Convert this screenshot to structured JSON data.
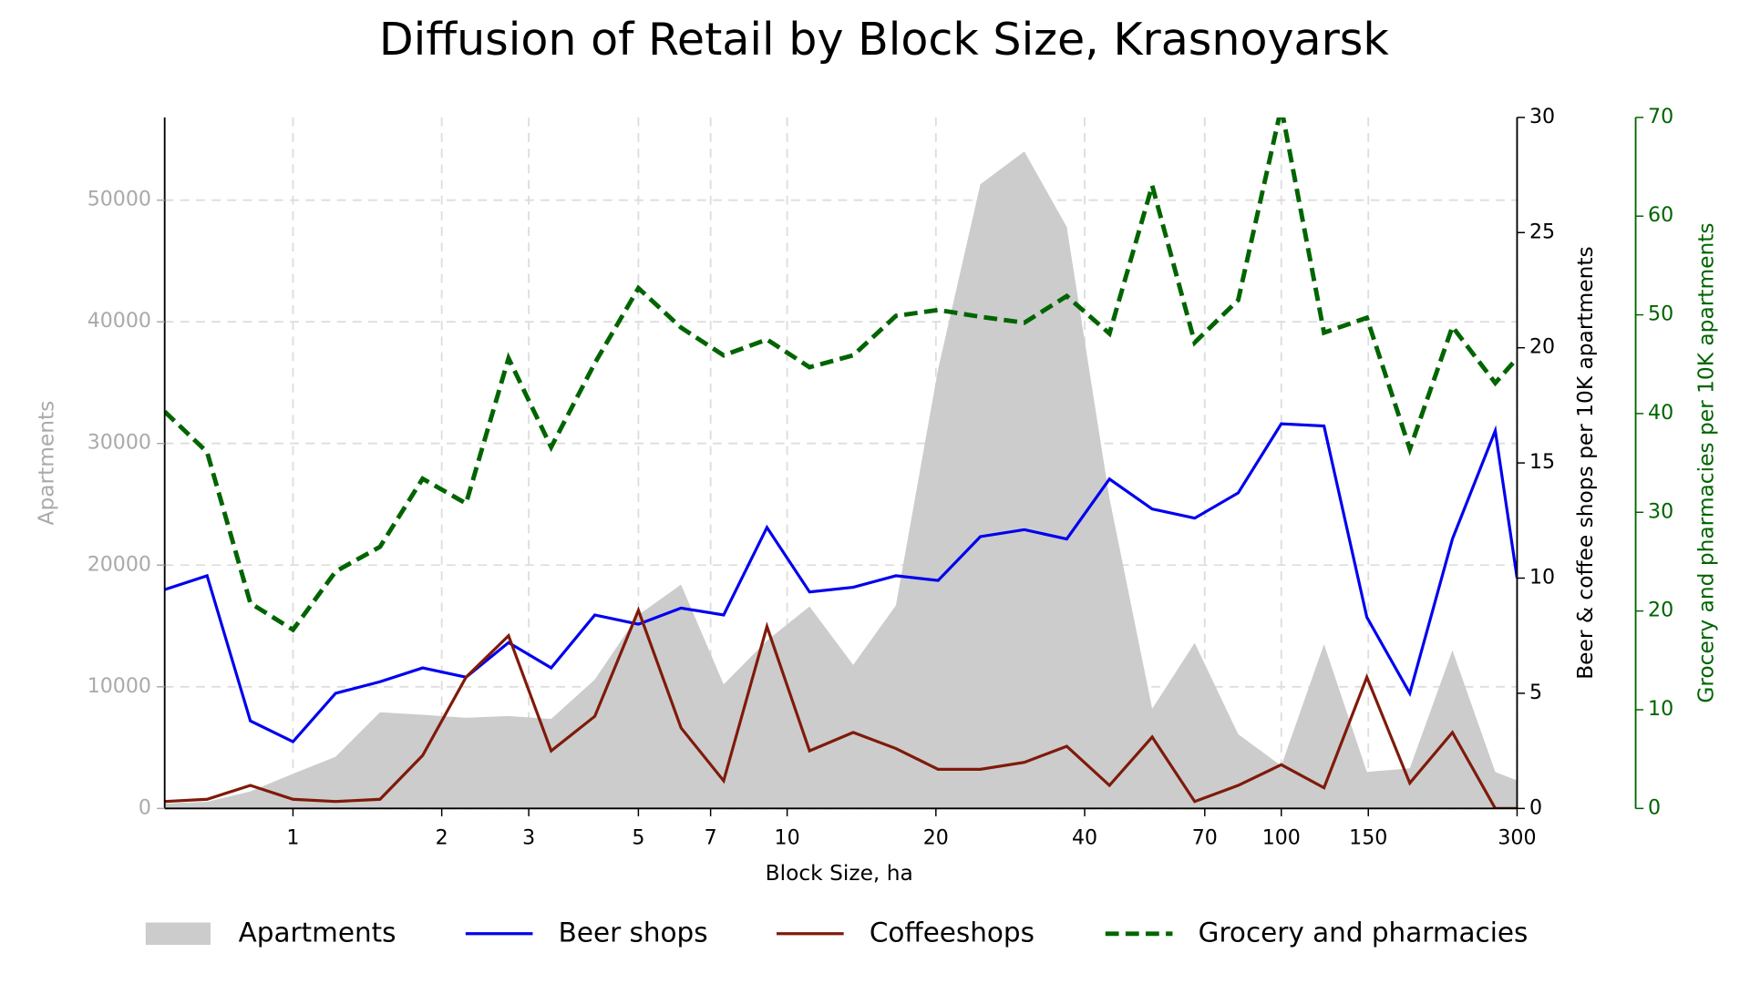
{
  "chart_data": {
    "type": "line",
    "title": "Diffusion of Retail by Block Size, Krasnoyarsk",
    "xlabel": "Block Size, ha",
    "ylabel": "Apartments",
    "y2label": "Beer & coffee shops per 10K apartments",
    "y3label": "Grocery and pharmacies per 10K apartments",
    "xscale": "log",
    "grid": true,
    "legend": "bottom",
    "xlim": [
      0.55,
      300
    ],
    "xticks": [
      1,
      2,
      3,
      5,
      7,
      10,
      20,
      40,
      70,
      100,
      150,
      300
    ],
    "ylim": [
      0,
      56800
    ],
    "yticks": [
      0,
      10000,
      20000,
      30000,
      40000,
      50000
    ],
    "y2lim": [
      0,
      30
    ],
    "y2ticks": [
      0,
      5,
      10,
      15,
      20,
      25,
      30
    ],
    "y3lim": [
      0,
      70
    ],
    "y3ticks": [
      0,
      10,
      20,
      30,
      40,
      50,
      60,
      70
    ],
    "x": [
      0.55,
      0.67,
      0.82,
      1,
      1.22,
      1.5,
      1.83,
      2.24,
      2.73,
      3.33,
      4.08,
      5,
      6.1,
      7.44,
      9.1,
      11.1,
      13.6,
      16.6,
      20.2,
      24.6,
      30.2,
      36.8,
      44.9,
      54.8,
      66.8,
      81.8,
      100,
      122,
      149,
      182,
      222,
      271,
      300
    ],
    "series": [
      {
        "name": "Apartments",
        "color": "#cccccc",
        "style": "area",
        "axis": "y",
        "values": [
          400,
          550,
          1400,
          2850,
          4250,
          7900,
          7700,
          7450,
          7600,
          7350,
          10600,
          15900,
          18400,
          10200,
          13800,
          16600,
          11800,
          16700,
          36100,
          51300,
          54000,
          47800,
          25500,
          8200,
          13600,
          6100,
          3500,
          13500,
          3000,
          3300,
          13000,
          3000,
          2300
        ]
      },
      {
        "name": "Beer shops",
        "color": "#0000ee",
        "style": "solid",
        "axis": "y2",
        "values": [
          9.5,
          10.1,
          3.8,
          2.9,
          5.0,
          5.5,
          6.1,
          5.7,
          7.2,
          6.1,
          8.4,
          8.0,
          8.7,
          8.4,
          12.2,
          9.4,
          9.6,
          10.1,
          9.9,
          11.8,
          12.1,
          11.7,
          14.3,
          13.0,
          12.6,
          13.7,
          16.7,
          16.6,
          8.3,
          5.0,
          11.7,
          16.4,
          10.0
        ]
      },
      {
        "name": "Coffeeshops",
        "color": "#7f1a0a",
        "style": "solid",
        "axis": "y2",
        "values": [
          0.3,
          0.4,
          1.0,
          0.4,
          0.3,
          0.4,
          2.3,
          5.7,
          7.5,
          2.5,
          4.0,
          8.6,
          3.5,
          1.2,
          7.9,
          2.5,
          3.3,
          2.6,
          1.7,
          1.7,
          2.0,
          2.7,
          1.0,
          3.1,
          0.3,
          1.0,
          1.9,
          0.9,
          5.7,
          1.1,
          3.3,
          0,
          0
        ]
      },
      {
        "name": "Grocery and pharmacies",
        "color": "#006400",
        "style": "dashed",
        "axis": "y3",
        "values": [
          40.2,
          36.1,
          20.8,
          18.1,
          24.0,
          26.5,
          33.4,
          30.9,
          45.6,
          36.6,
          45.1,
          52.7,
          48.7,
          45.9,
          47.5,
          44.7,
          45.9,
          49.9,
          50.5,
          49.8,
          49.2,
          51.9,
          48.1,
          63.1,
          47.2,
          51.5,
          71,
          48.2,
          49.7,
          36.4,
          48.8,
          43.1,
          45.6
        ]
      }
    ]
  }
}
